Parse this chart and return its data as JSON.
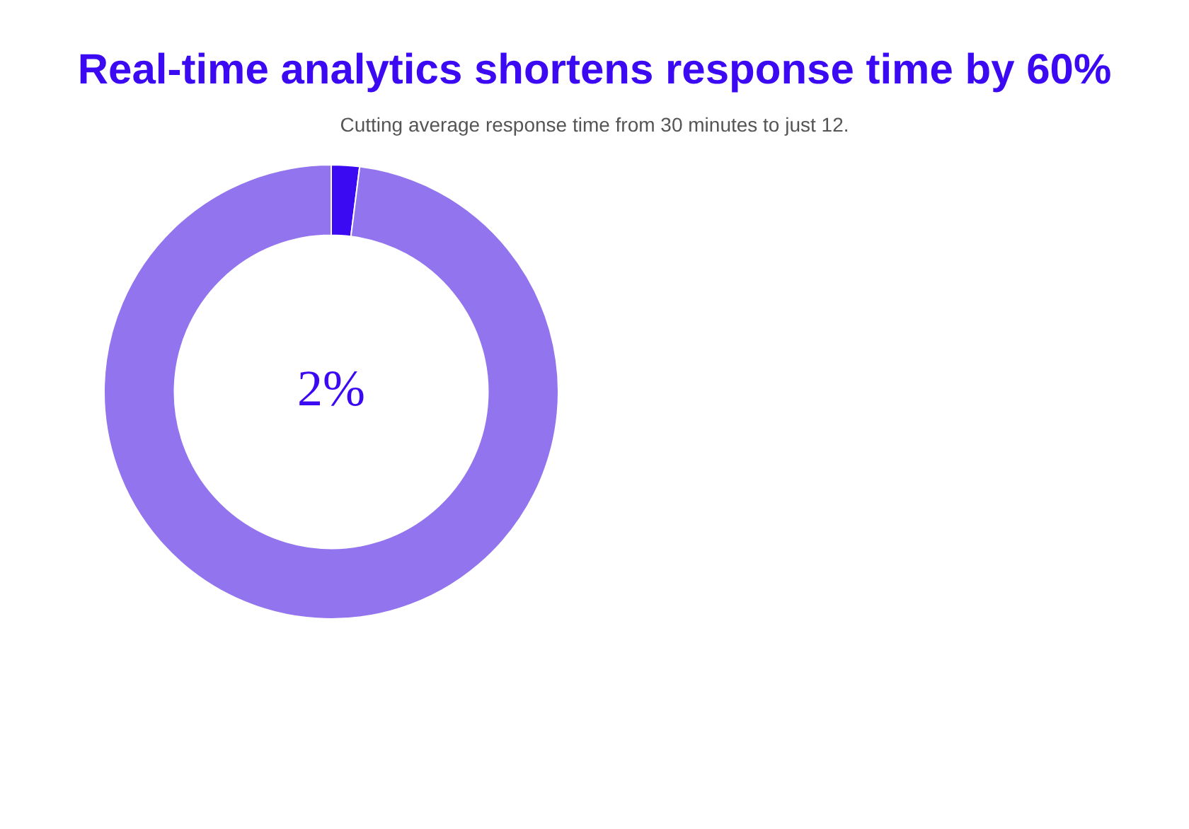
{
  "chart_data": {
    "type": "donut",
    "title": "Real-time analytics shortens response time by 60%",
    "subtitle": "Cutting average response time from 30 minutes to just 12.",
    "categories": [
      null,
      null
    ],
    "values": [
      2,
      98
    ],
    "colors": [
      "#3b0af2",
      "#9274ee"
    ],
    "annotations": [
      "2%"
    ],
    "legend": false
  }
}
